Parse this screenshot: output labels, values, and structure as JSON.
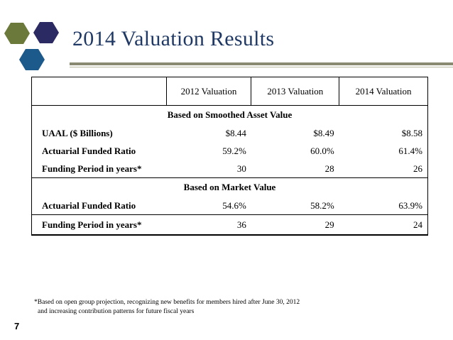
{
  "slide": {
    "title": "2014 Valuation Results",
    "page_number": "7",
    "colors": {
      "title": "#1f3864",
      "hex_olive": "#6b7a3a",
      "hex_navy": "#2b2a63",
      "hex_blue": "#1d5a8c"
    },
    "logo_icon": "hexagon-cluster-icon"
  },
  "table": {
    "columns": [
      "2012 Valuation",
      "2013 Valuation",
      "2014 Valuation"
    ],
    "sections": [
      {
        "heading": "Based on Smoothed Asset Value",
        "rows": [
          {
            "label": "UAAL ($ Billions)",
            "values": [
              "$8.44",
              "$8.49",
              "$8.58"
            ]
          },
          {
            "label": "Actuarial Funded Ratio",
            "values": [
              "59.2%",
              "60.0%",
              "61.4%"
            ]
          },
          {
            "label": "Funding Period in years*",
            "values": [
              "30",
              "28",
              "26"
            ]
          }
        ]
      },
      {
        "heading": "Based on Market Value",
        "rows": [
          {
            "label": "Actuarial Funded Ratio",
            "values": [
              "54.6%",
              "58.2%",
              "63.9%"
            ]
          },
          {
            "label": "Funding Period in years*",
            "values": [
              "36",
              "29",
              "24"
            ]
          }
        ]
      }
    ]
  },
  "footnote": {
    "line1": "*Based on open group projection, recognizing  new benefits for members hired after June 30, 2012",
    "line2": "and increasing contribution patterns for future fiscal years"
  }
}
